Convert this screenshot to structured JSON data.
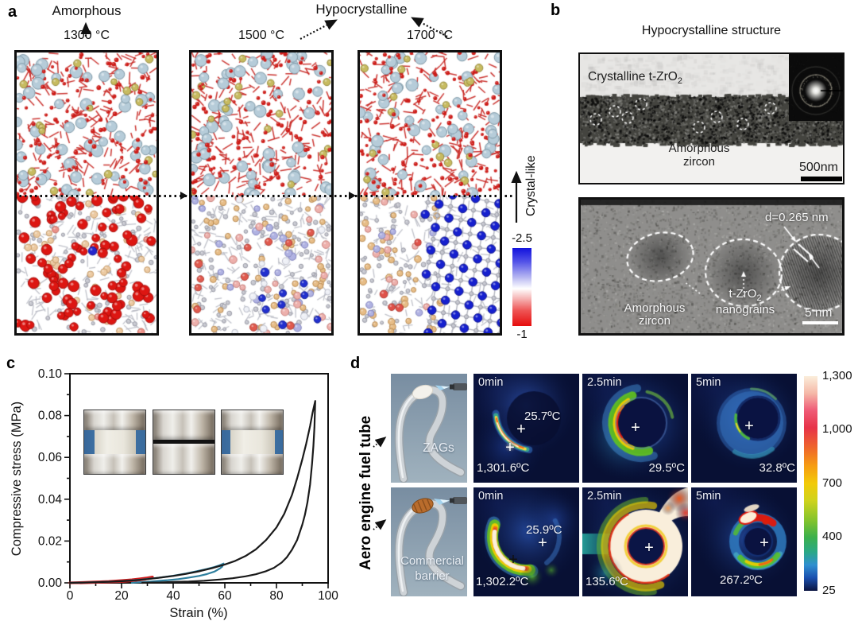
{
  "panels": {
    "a": {
      "label": "a",
      "amorphous_label": "Amorphous",
      "hypocrystalline_label": "Hypocrystalline",
      "columns": [
        {
          "temp": "1300 °C"
        },
        {
          "temp": "1500 °C"
        },
        {
          "temp": "1700 °C"
        }
      ],
      "colorbar": {
        "top_tick": "-2.5",
        "bottom_tick": "-1",
        "axis_label": "Crystal-like",
        "top_color": "#1212dd",
        "mid_color": "#ffffff",
        "bottom_color": "#e60d0d"
      }
    },
    "b": {
      "label": "b",
      "title": "Hypocrystalline structure",
      "top_image": {
        "crystalline_label_main": "Crystalline t-ZrO",
        "crystalline_label_sub": "2",
        "region_label_line1": "Amorphous",
        "region_label_line2": "zircon",
        "scale_bar": "500nm"
      },
      "bottom_image": {
        "d_spacing_label": "d=0.265 nm",
        "grain_label_main": "t-ZrO",
        "grain_label_sub": "2",
        "grain_label_line2": "nanograins",
        "region_label_line1": "Amorphous",
        "region_label_line2": "zircon",
        "scale_bar": "5 nm"
      }
    },
    "c": {
      "label": "c"
    },
    "d": {
      "label": "d",
      "row_header": "Aero engine fuel tube",
      "rows": [
        {
          "photo_label_line1": "ZAGs",
          "photo_label_line2": "",
          "cells": [
            {
              "time": "0min",
              "temp_ambient": "25.7ºC",
              "temp_hot": "1,301.6ºC"
            },
            {
              "time": "2.5min",
              "temp": "29.5ºC"
            },
            {
              "time": "5min",
              "temp": "32.8ºC"
            }
          ]
        },
        {
          "photo_label_line1": "Commercial",
          "photo_label_line2": "barrier",
          "cells": [
            {
              "time": "0min",
              "temp_ambient": "25.9ºC",
              "temp_hot": "1,302.2ºC"
            },
            {
              "time": "2.5min",
              "temp": "135.6ºC"
            },
            {
              "time": "5min",
              "temp": "267.2ºC"
            }
          ]
        }
      ],
      "colorbar": {
        "ticks": [
          "1,300",
          "1,000",
          "700",
          "400",
          "25"
        ],
        "scale_colors": [
          "#fbeedb",
          "#e73349",
          "#f2ca08",
          "#3cb04c",
          "#0b1440"
        ]
      }
    }
  },
  "chart_data": {
    "type": "line",
    "title": "",
    "xlabel": "Strain (%)",
    "ylabel": "Compressive stress (MPa)",
    "xlim": [
      0,
      100
    ],
    "ylim": [
      0,
      0.1
    ],
    "xticks": [
      0,
      20,
      40,
      60,
      80,
      100
    ],
    "yticks": [
      "0.00",
      "0.02",
      "0.04",
      "0.06",
      "0.08",
      "0.10"
    ],
    "grid": false,
    "legend": "none",
    "series": [
      {
        "name": "compression cycle to 95% strain",
        "color": "#1a1a1a",
        "points": [
          [
            0,
            0
          ],
          [
            5,
            0.0001
          ],
          [
            10,
            0.0003
          ],
          [
            15,
            0.0005
          ],
          [
            20,
            0.0008
          ],
          [
            25,
            0.0012
          ],
          [
            30,
            0.0018
          ],
          [
            35,
            0.0025
          ],
          [
            40,
            0.0033
          ],
          [
            45,
            0.0043
          ],
          [
            50,
            0.0055
          ],
          [
            55,
            0.007
          ],
          [
            60,
            0.0088
          ],
          [
            64,
            0.0105
          ],
          [
            68,
            0.0128
          ],
          [
            72,
            0.016
          ],
          [
            76,
            0.0205
          ],
          [
            80,
            0.0265
          ],
          [
            83,
            0.033
          ],
          [
            86,
            0.042
          ],
          [
            88,
            0.05
          ],
          [
            90,
            0.059
          ],
          [
            91.5,
            0.0665
          ],
          [
            93,
            0.075
          ],
          [
            94,
            0.0815
          ],
          [
            95,
            0.087
          ],
          [
            94.7,
            0.0745
          ],
          [
            94.3,
            0.0655
          ],
          [
            93.8,
            0.057
          ],
          [
            93,
            0.047
          ],
          [
            92,
            0.0385
          ],
          [
            91,
            0.0325
          ],
          [
            90,
            0.0278
          ],
          [
            88,
            0.0205
          ],
          [
            86,
            0.0158
          ],
          [
            84,
            0.0122
          ],
          [
            82,
            0.0097
          ],
          [
            79,
            0.0072
          ],
          [
            76,
            0.0056
          ],
          [
            72,
            0.0041
          ],
          [
            68,
            0.0031
          ],
          [
            63,
            0.0022
          ],
          [
            58,
            0.0016
          ],
          [
            52,
            0.001
          ],
          [
            46,
            0.0006
          ],
          [
            40,
            0.0004
          ],
          [
            35,
            0.0002
          ],
          [
            30,
            0.0001
          ],
          [
            28,
            0
          ]
        ]
      },
      {
        "name": "compression cycle to 60% strain",
        "color": "#2e7f9e",
        "points": [
          [
            0,
            0
          ],
          [
            10,
            0.0003
          ],
          [
            20,
            0.0008
          ],
          [
            28,
            0.0016
          ],
          [
            34,
            0.0024
          ],
          [
            40,
            0.0034
          ],
          [
            45,
            0.0045
          ],
          [
            49,
            0.0055
          ],
          [
            53,
            0.0066
          ],
          [
            56,
            0.0076
          ],
          [
            58,
            0.0084
          ],
          [
            59.5,
            0.0092
          ],
          [
            59,
            0.0078
          ],
          [
            58,
            0.0068
          ],
          [
            56,
            0.0054
          ],
          [
            53,
            0.0042
          ],
          [
            50,
            0.0033
          ],
          [
            46,
            0.0025
          ],
          [
            42,
            0.0018
          ],
          [
            38,
            0.0013
          ],
          [
            34,
            0.0009
          ],
          [
            30,
            0.0005
          ],
          [
            27,
            0.0003
          ],
          [
            25,
            0.0001
          ],
          [
            24,
            0
          ]
        ]
      },
      {
        "name": "compression cycle to 30% strain",
        "color": "#d01f1f",
        "points": [
          [
            0,
            0
          ],
          [
            5,
            0.0002
          ],
          [
            10,
            0.0004
          ],
          [
            15,
            0.0007
          ],
          [
            20,
            0.0011
          ],
          [
            24,
            0.0015
          ],
          [
            27,
            0.0019
          ],
          [
            30,
            0.0024
          ],
          [
            32,
            0.0028
          ],
          [
            31,
            0.0022
          ],
          [
            29,
            0.0017
          ],
          [
            26,
            0.0012
          ],
          [
            22,
            0.0008
          ],
          [
            18,
            0.0005
          ],
          [
            13,
            0.0003
          ],
          [
            8,
            0.0001
          ],
          [
            4,
            0
          ]
        ]
      }
    ]
  }
}
